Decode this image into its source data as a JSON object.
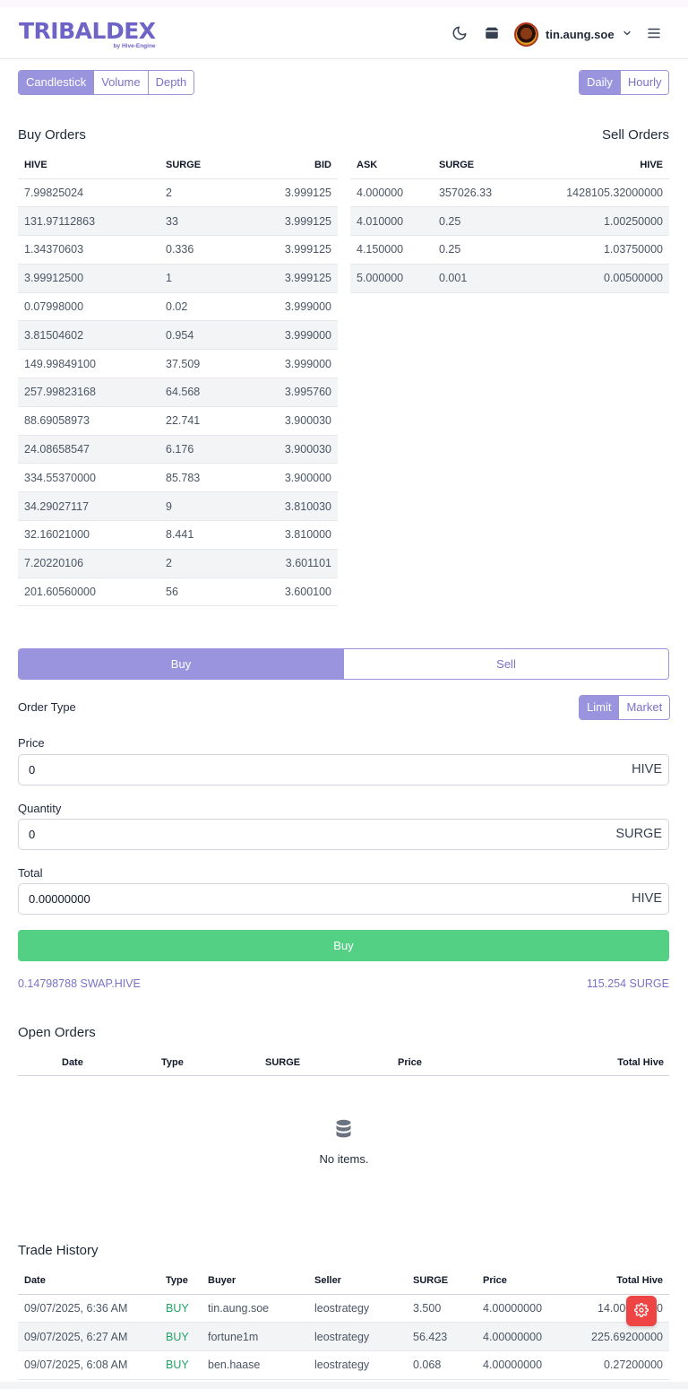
{
  "header": {
    "logo_text": "TRIBALDEX",
    "logo_sub": "by Hive-Engine",
    "username": "tin.aung.soe",
    "icons": [
      "moon-icon",
      "wallet-icon",
      "chevron-down-icon",
      "menu-icon"
    ]
  },
  "chart_tabs": [
    "Candlestick",
    "Volume",
    "Depth"
  ],
  "chart_active": "Candlestick",
  "interval_tabs": [
    "Daily",
    "Hourly"
  ],
  "interval_active": "Daily",
  "buy_orders": {
    "title": "Buy Orders",
    "headers": [
      "HIVE",
      "SURGE",
      "BID"
    ],
    "rows": [
      [
        "7.99825024",
        "2",
        "3.999125"
      ],
      [
        "131.97112863",
        "33",
        "3.999125"
      ],
      [
        "1.34370603",
        "0.336",
        "3.999125"
      ],
      [
        "3.99912500",
        "1",
        "3.999125"
      ],
      [
        "0.07998000",
        "0.02",
        "3.999000"
      ],
      [
        "3.81504602",
        "0.954",
        "3.999000"
      ],
      [
        "149.99849100",
        "37.509",
        "3.999000"
      ],
      [
        "257.99823168",
        "64.568",
        "3.995760"
      ],
      [
        "88.69058973",
        "22.741",
        "3.900030"
      ],
      [
        "24.08658547",
        "6.176",
        "3.900030"
      ],
      [
        "334.55370000",
        "85.783",
        "3.900000"
      ],
      [
        "34.29027117",
        "9",
        "3.810030"
      ],
      [
        "32.16021000",
        "8.441",
        "3.810000"
      ],
      [
        "7.20220106",
        "2",
        "3.601101"
      ],
      [
        "201.60560000",
        "56",
        "3.600100"
      ]
    ]
  },
  "sell_orders": {
    "title": "Sell Orders",
    "headers": [
      "ASK",
      "SURGE",
      "HIVE"
    ],
    "rows": [
      [
        "4.000000",
        "357026.33",
        "1428105.32000000"
      ],
      [
        "4.010000",
        "0.25",
        "1.00250000"
      ],
      [
        "4.150000",
        "0.25",
        "1.03750000"
      ],
      [
        "5.000000",
        "0.001",
        "0.00500000"
      ]
    ]
  },
  "trade_form": {
    "buy_tab": "Buy",
    "sell_tab": "Sell",
    "order_type_label": "Order Type",
    "order_types": [
      "Limit",
      "Market"
    ],
    "price_label": "Price",
    "price_value": "0",
    "price_unit": "HIVE",
    "quantity_label": "Quantity",
    "quantity_value": "0",
    "quantity_unit": "SURGE",
    "total_label": "Total",
    "total_value": "0.00000000",
    "total_unit": "HIVE",
    "submit_label": "Buy",
    "balance_left": "0.14798788 SWAP.HIVE",
    "balance_right": "115.254 SURGE"
  },
  "open_orders": {
    "title": "Open Orders",
    "headers": [
      "Date",
      "Type",
      "SURGE",
      "Price",
      "Total Hive"
    ],
    "empty_text": "No items."
  },
  "trade_history": {
    "title": "Trade History",
    "headers": [
      "Date",
      "Type",
      "Buyer",
      "Seller",
      "SURGE",
      "Price",
      "Total Hive"
    ],
    "rows": [
      [
        "09/07/2025, 6:36 AM",
        "BUY",
        "tin.aung.soe",
        "leostrategy",
        "3.500",
        "4.00000000",
        "14.00000000"
      ],
      [
        "09/07/2025, 6:27 AM",
        "BUY",
        "fortune1m",
        "leostrategy",
        "56.423",
        "4.00000000",
        "225.69200000"
      ],
      [
        "09/07/2025, 6:08 AM",
        "BUY",
        "ben.haase",
        "leostrategy",
        "0.068",
        "4.00000000",
        "0.27200000"
      ]
    ]
  },
  "colors": {
    "accent": "#9a93dd",
    "brand": "#6e63c6",
    "buy_button": "#54d084",
    "buy_text": "#22a366",
    "fab": "#ef4444"
  }
}
